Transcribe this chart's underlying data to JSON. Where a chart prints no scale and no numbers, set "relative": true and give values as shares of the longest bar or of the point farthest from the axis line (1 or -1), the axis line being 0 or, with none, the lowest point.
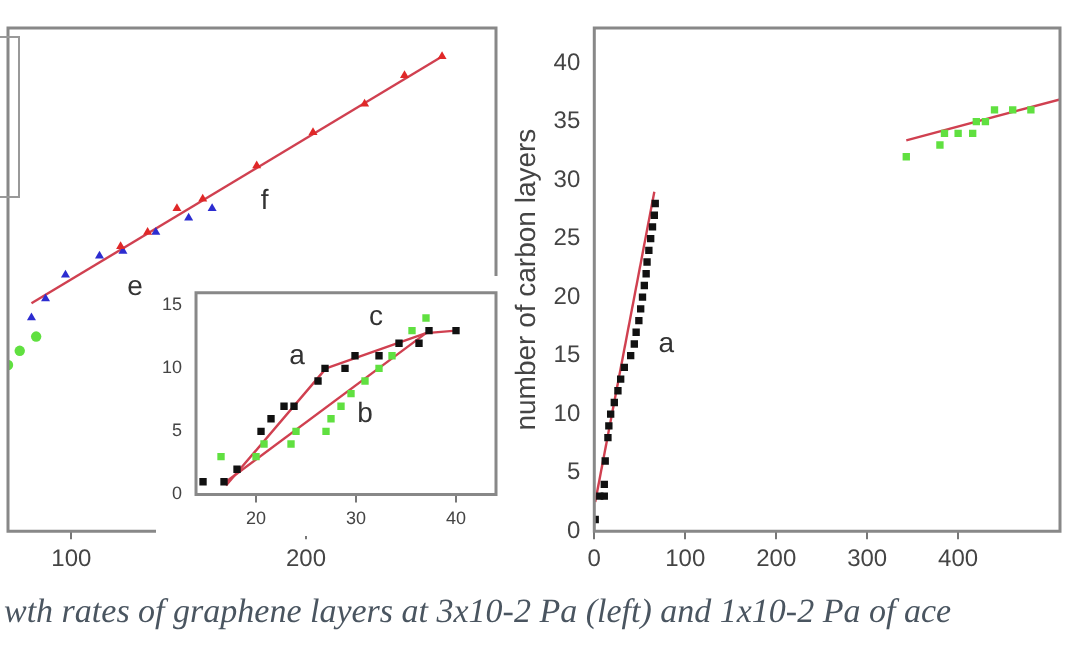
{
  "chart_data": [
    {
      "type": "scatter",
      "relative": true,
      "xlim": [
        73,
        281
      ],
      "xticks": [
        100,
        200
      ],
      "tick_labels": "x",
      "series": [
        {
          "name": "f",
          "color": "#e02828",
          "marker": "triangle",
          "x": [
            121,
            132.5,
            145,
            156,
            179,
            203,
            225,
            242,
            258
          ],
          "values": [
            0.6,
            0.63,
            0.68,
            0.7,
            0.77,
            0.84,
            0.9,
            0.96,
            1
          ]
        },
        {
          "name": "e",
          "color": "#2c2cd0",
          "marker": "triangle",
          "x": [
            83,
            89,
            97.5,
            112,
            122,
            136,
            150,
            160
          ],
          "values": [
            0.45,
            0.49,
            0.54,
            0.58,
            0.59,
            0.63,
            0.66,
            0.68
          ]
        },
        {
          "color": "#60e040",
          "marker": "circle",
          "x": [
            73,
            78,
            85
          ],
          "values": [
            0.35,
            0.38,
            0.41
          ]
        },
        {
          "type": "line",
          "color": "#d04050",
          "marker": "none",
          "x": [
            83,
            258
          ],
          "values": [
            0.48,
            1
          ]
        }
      ],
      "annotations": [
        "wth rates of graphene layers at 3x10-2 Pa (left) and 1x10-2 Pa of ace"
      ]
    },
    {
      "type": "scatter",
      "xlim": [
        14,
        44
      ],
      "xticks": [
        20,
        30,
        40
      ],
      "ylim": [
        0,
        16
      ],
      "yticks": [
        0,
        5,
        10,
        15
      ],
      "series": [
        {
          "name": "a",
          "color": "#111111",
          "marker": "square",
          "x": [
            14.7,
            16.8,
            18.1,
            20.5,
            21.5,
            22.8,
            23.8,
            26.2,
            26.9,
            28.9,
            29.9,
            32.3,
            34.3,
            36.3,
            37.3,
            40
          ],
          "values": [
            1,
            1,
            2,
            5,
            6,
            7,
            7,
            9,
            10,
            10,
            11,
            11,
            12,
            12,
            13,
            13
          ]
        },
        {
          "name": "b",
          "color": "#60e040",
          "marker": "square",
          "x": [
            16.5,
            20,
            20.8,
            23.5,
            24,
            27,
            27.5,
            28.5,
            29.5,
            30.9,
            32.3,
            33.6,
            34.3,
            35.6,
            37
          ],
          "values": [
            3,
            3,
            4,
            4,
            5,
            5,
            6,
            7,
            8,
            9,
            10,
            11,
            null,
            13,
            14
          ]
        },
        {
          "type": "line",
          "color": "#d04050",
          "marker": "none",
          "x": [
            17,
            27,
            37,
            40
          ],
          "values": [
            0.7,
            10,
            12.8,
            13
          ]
        },
        {
          "type": "line",
          "color": "#d04050",
          "marker": "none",
          "x": [
            17,
            37
          ],
          "values": [
            1,
            12.8
          ]
        }
      ],
      "annotations": [
        "c"
      ]
    },
    {
      "type": "scatter",
      "xlim": [
        0,
        512
      ],
      "xticks": [
        0,
        100,
        200,
        300,
        400
      ],
      "ylim": [
        0,
        43
      ],
      "yticks": [
        0,
        5,
        10,
        15,
        20,
        25,
        30,
        35,
        40
      ],
      "ylabel": "number of carbon layers",
      "series": [
        {
          "name": "a",
          "color": "#111111",
          "marker": "square",
          "x": [
            1,
            6,
            11,
            11,
            12,
            15,
            16,
            18,
            22,
            26,
            29,
            33,
            40,
            44,
            46,
            49,
            51,
            53,
            55,
            57,
            58,
            60,
            62,
            64,
            66,
            67
          ],
          "values": [
            1,
            3,
            3,
            4,
            6,
            8,
            9,
            10,
            11,
            12,
            13,
            14,
            15,
            16,
            17,
            18,
            19,
            20,
            21,
            22,
            23,
            24,
            25,
            26,
            27,
            28
          ]
        },
        {
          "color": "#60e040",
          "marker": "square",
          "x": [
            343,
            380,
            385,
            400,
            416,
            420,
            430,
            440,
            460,
            480
          ],
          "values": [
            32,
            33,
            34,
            34,
            34,
            35,
            35,
            36,
            36,
            36
          ]
        },
        {
          "type": "line",
          "color": "#d04050",
          "marker": "none",
          "x": [
            1,
            66
          ],
          "values": [
            2.5,
            29
          ]
        },
        {
          "type": "line",
          "color": "#d04050",
          "marker": "none",
          "x": [
            343,
            512
          ],
          "values": [
            33.4,
            36.9
          ]
        }
      ]
    }
  ]
}
